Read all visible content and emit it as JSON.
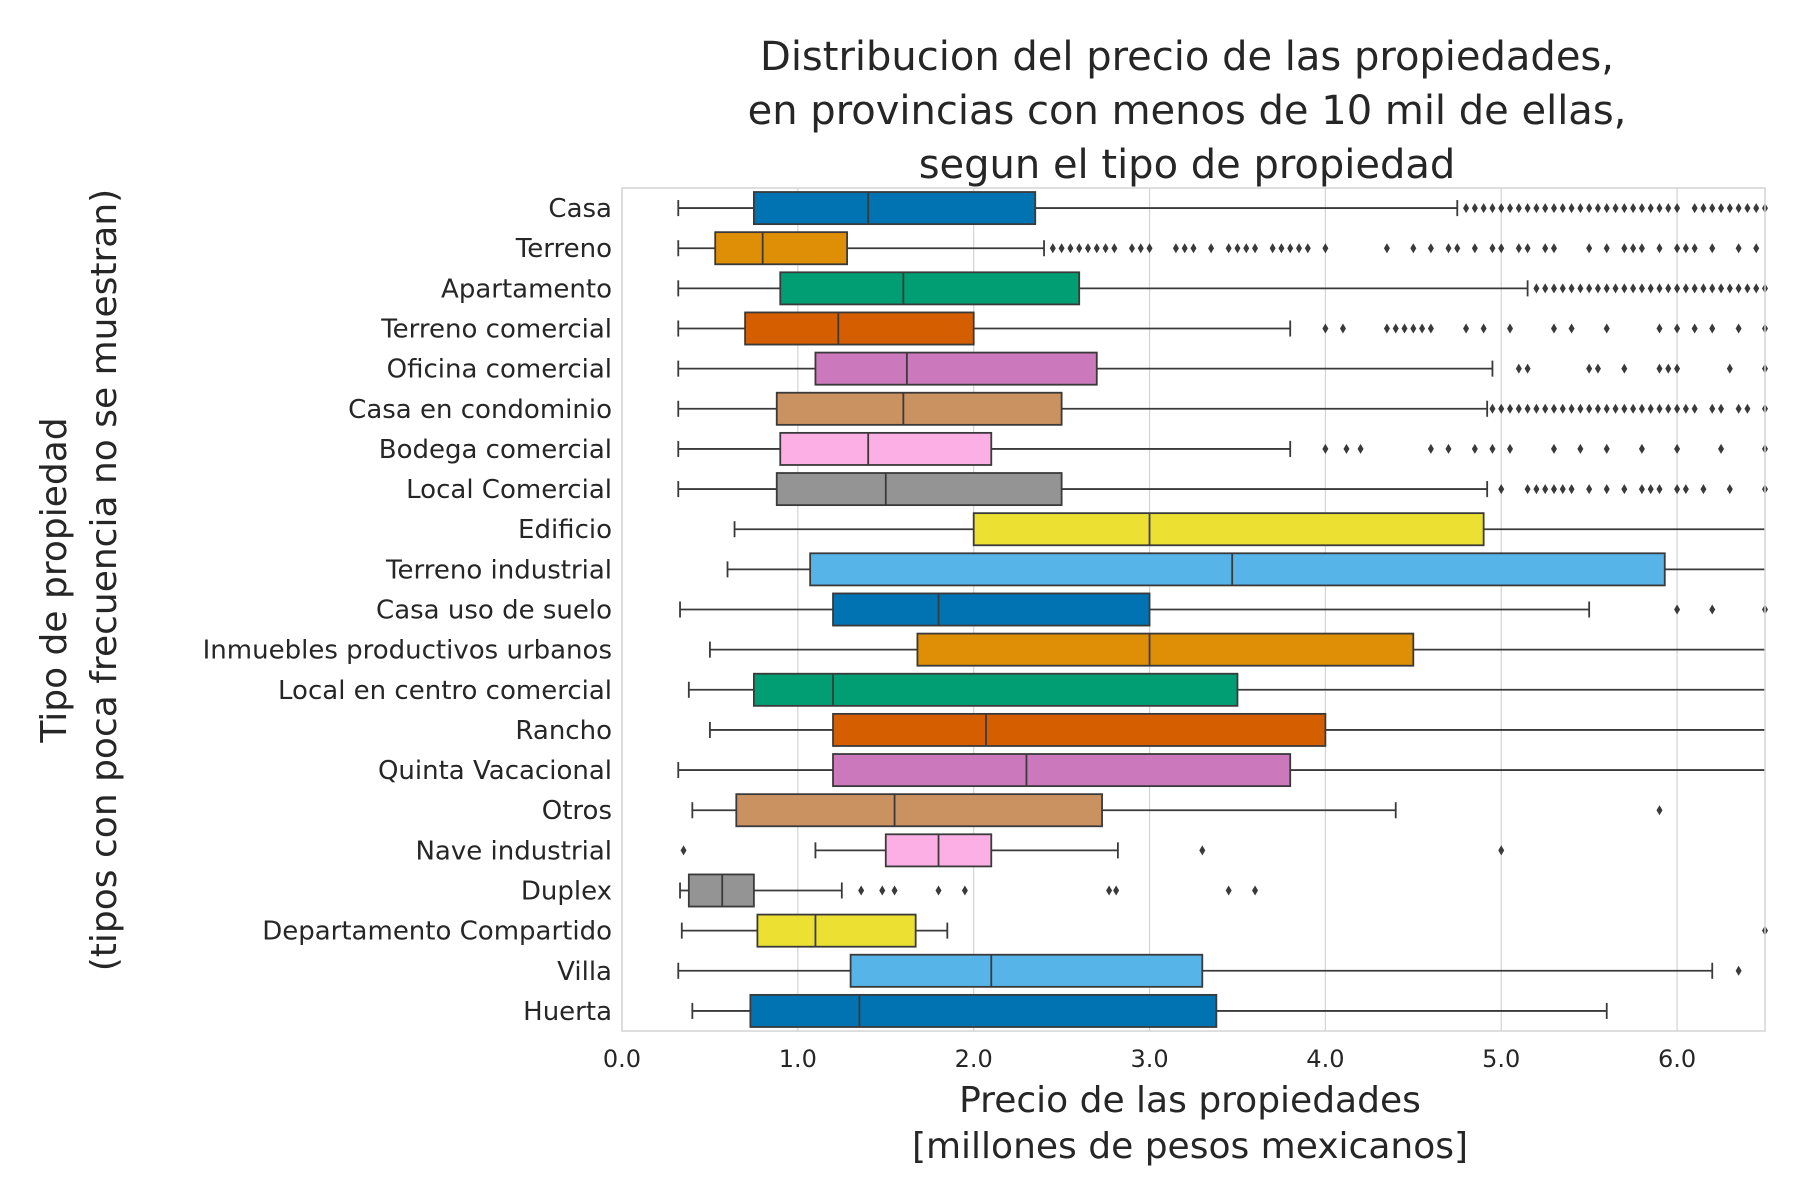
{
  "chart_data": {
    "type": "boxplot",
    "orientation": "horizontal",
    "title": [
      "Distribucion del precio de las propiedades,",
      "en provincias con menos de 10 mil de ellas,",
      "segun el tipo de propiedad"
    ],
    "xlabel": [
      "Precio de las propiedades",
      "[millones de pesos mexicanos]"
    ],
    "ylabel": [
      "Tipo de propiedad",
      "(tipos con poca frecuencia no se muestran)"
    ],
    "xlim": [
      0,
      6.5
    ],
    "xticks": [
      "0.0",
      "1.0",
      "2.0",
      "3.0",
      "4.0",
      "5.0",
      "6.0"
    ],
    "grid": true,
    "categories": [
      {
        "name": "Casa",
        "color": "#0173b2",
        "whislo": 0.32,
        "q1": 0.75,
        "median": 1.4,
        "q3": 2.35,
        "whishi": 4.75,
        "fliers": [
          4.8,
          4.85,
          4.9,
          4.95,
          5.0,
          5.05,
          5.1,
          5.15,
          5.2,
          5.25,
          5.3,
          5.35,
          5.4,
          5.45,
          5.5,
          5.55,
          5.6,
          5.65,
          5.7,
          5.75,
          5.8,
          5.85,
          5.9,
          5.95,
          6.0,
          6.1,
          6.15,
          6.2,
          6.25,
          6.3,
          6.35,
          6.4,
          6.45,
          6.5
        ]
      },
      {
        "name": "Terreno",
        "color": "#de8f05",
        "whislo": 0.32,
        "q1": 0.53,
        "median": 0.8,
        "q3": 1.28,
        "whishi": 2.4,
        "fliers": [
          2.45,
          2.5,
          2.55,
          2.6,
          2.65,
          2.7,
          2.75,
          2.8,
          2.9,
          2.95,
          3.0,
          3.15,
          3.2,
          3.25,
          3.35,
          3.45,
          3.5,
          3.55,
          3.6,
          3.7,
          3.75,
          3.8,
          3.85,
          3.9,
          4.0,
          4.35,
          4.5,
          4.6,
          4.7,
          4.75,
          4.85,
          4.95,
          5.0,
          5.1,
          5.15,
          5.25,
          5.3,
          5.5,
          5.6,
          5.7,
          5.75,
          5.8,
          5.9,
          6.0,
          6.05,
          6.1,
          6.2,
          6.35,
          6.45
        ]
      },
      {
        "name": "Apartamento",
        "color": "#029e73",
        "whislo": 0.32,
        "q1": 0.9,
        "median": 1.6,
        "q3": 2.6,
        "whishi": 5.15,
        "fliers": [
          5.2,
          5.25,
          5.3,
          5.35,
          5.4,
          5.45,
          5.5,
          5.55,
          5.6,
          5.65,
          5.7,
          5.75,
          5.8,
          5.85,
          5.9,
          5.95,
          6.0,
          6.05,
          6.1,
          6.15,
          6.2,
          6.25,
          6.3,
          6.35,
          6.4,
          6.45,
          6.5
        ]
      },
      {
        "name": "Terreno comercial",
        "color": "#d55e00",
        "whislo": 0.32,
        "q1": 0.7,
        "median": 1.23,
        "q3": 2.0,
        "whishi": 3.8,
        "fliers": [
          4.0,
          4.1,
          4.35,
          4.4,
          4.45,
          4.5,
          4.55,
          4.6,
          4.8,
          4.9,
          5.05,
          5.3,
          5.4,
          5.6,
          5.9,
          6.0,
          6.1,
          6.2,
          6.35,
          6.5
        ]
      },
      {
        "name": "Oficina comercial",
        "color": "#cc78bc",
        "whislo": 0.32,
        "q1": 1.1,
        "median": 1.62,
        "q3": 2.7,
        "whishi": 4.95,
        "fliers": [
          5.1,
          5.15,
          5.5,
          5.55,
          5.7,
          5.9,
          5.95,
          6.0,
          6.3,
          6.5
        ]
      },
      {
        "name": "Casa en condominio",
        "color": "#ca9161",
        "whislo": 0.32,
        "q1": 0.88,
        "median": 1.6,
        "q3": 2.5,
        "whishi": 4.92,
        "fliers": [
          4.95,
          5.0,
          5.05,
          5.1,
          5.15,
          5.2,
          5.25,
          5.3,
          5.35,
          5.4,
          5.45,
          5.5,
          5.55,
          5.6,
          5.65,
          5.7,
          5.75,
          5.8,
          5.85,
          5.9,
          5.95,
          6.0,
          6.05,
          6.1,
          6.2,
          6.25,
          6.35,
          6.4,
          6.5
        ]
      },
      {
        "name": "Bodega comercial",
        "color": "#fbafe4",
        "whislo": 0.32,
        "q1": 0.9,
        "median": 1.4,
        "q3": 2.1,
        "whishi": 3.8,
        "fliers": [
          4.0,
          4.12,
          4.2,
          4.6,
          4.7,
          4.85,
          4.95,
          5.05,
          5.3,
          5.45,
          5.6,
          5.8,
          6.0,
          6.25,
          6.5
        ]
      },
      {
        "name": "Local Comercial",
        "color": "#949494",
        "whislo": 0.32,
        "q1": 0.88,
        "median": 1.5,
        "q3": 2.5,
        "whishi": 4.92,
        "fliers": [
          5.0,
          5.15,
          5.2,
          5.25,
          5.3,
          5.35,
          5.4,
          5.5,
          5.6,
          5.7,
          5.8,
          5.85,
          5.9,
          6.0,
          6.05,
          6.15,
          6.3,
          6.5
        ]
      },
      {
        "name": "Edificio",
        "color": "#ece133",
        "whislo": 0.64,
        "q1": 2.0,
        "median": 3.0,
        "q3": 4.9,
        "whishi": 6.5,
        "fliers": []
      },
      {
        "name": "Terreno industrial",
        "color": "#56b4e9",
        "whislo": 0.6,
        "q1": 1.07,
        "median": 3.47,
        "q3": 5.93,
        "whishi": 6.5,
        "fliers": []
      },
      {
        "name": "Casa uso de suelo",
        "color": "#0173b2",
        "whislo": 0.33,
        "q1": 1.2,
        "median": 1.8,
        "q3": 3.0,
        "whishi": 5.5,
        "fliers": [
          6.0,
          6.2,
          6.5
        ]
      },
      {
        "name": "Inmuebles productivos urbanos",
        "color": "#de8f05",
        "whislo": 0.5,
        "q1": 1.68,
        "median": 3.0,
        "q3": 4.5,
        "whishi": 6.5,
        "fliers": []
      },
      {
        "name": "Local en centro comercial",
        "color": "#029e73",
        "whislo": 0.38,
        "q1": 0.75,
        "median": 1.2,
        "q3": 3.5,
        "whishi": 6.5,
        "fliers": []
      },
      {
        "name": "Rancho",
        "color": "#d55e00",
        "whislo": 0.5,
        "q1": 1.2,
        "median": 2.07,
        "q3": 4.0,
        "whishi": 6.5,
        "fliers": []
      },
      {
        "name": "Quinta Vacacional",
        "color": "#cc78bc",
        "whislo": 0.32,
        "q1": 1.2,
        "median": 2.3,
        "q3": 3.8,
        "whishi": 6.5,
        "fliers": []
      },
      {
        "name": "Otros",
        "color": "#ca9161",
        "whislo": 0.4,
        "q1": 0.65,
        "median": 1.55,
        "q3": 2.73,
        "whishi": 4.4,
        "fliers": [
          5.9
        ]
      },
      {
        "name": "Nave industrial",
        "color": "#fbafe4",
        "whislo": 1.1,
        "q1": 1.5,
        "median": 1.8,
        "q3": 2.1,
        "whishi": 2.82,
        "fliers": [
          0.35,
          3.3,
          5.0
        ]
      },
      {
        "name": "Duplex",
        "color": "#949494",
        "whislo": 0.33,
        "q1": 0.38,
        "median": 0.57,
        "q3": 0.75,
        "whishi": 1.25,
        "fliers": [
          1.36,
          1.48,
          1.55,
          1.8,
          1.95,
          2.77,
          2.81,
          3.45,
          3.6
        ]
      },
      {
        "name": "Departamento Compartido",
        "color": "#ece133",
        "whislo": 0.34,
        "q1": 0.77,
        "median": 1.1,
        "q3": 1.67,
        "whishi": 1.85,
        "fliers": [
          6.5
        ]
      },
      {
        "name": "Villa",
        "color": "#56b4e9",
        "whislo": 0.32,
        "q1": 1.3,
        "median": 2.1,
        "q3": 3.3,
        "whishi": 6.2,
        "fliers": [
          6.35
        ]
      },
      {
        "name": "Huerta",
        "color": "#0173b2",
        "whislo": 0.4,
        "q1": 0.73,
        "median": 1.35,
        "q3": 3.38,
        "whishi": 5.6,
        "fliers": []
      }
    ]
  }
}
